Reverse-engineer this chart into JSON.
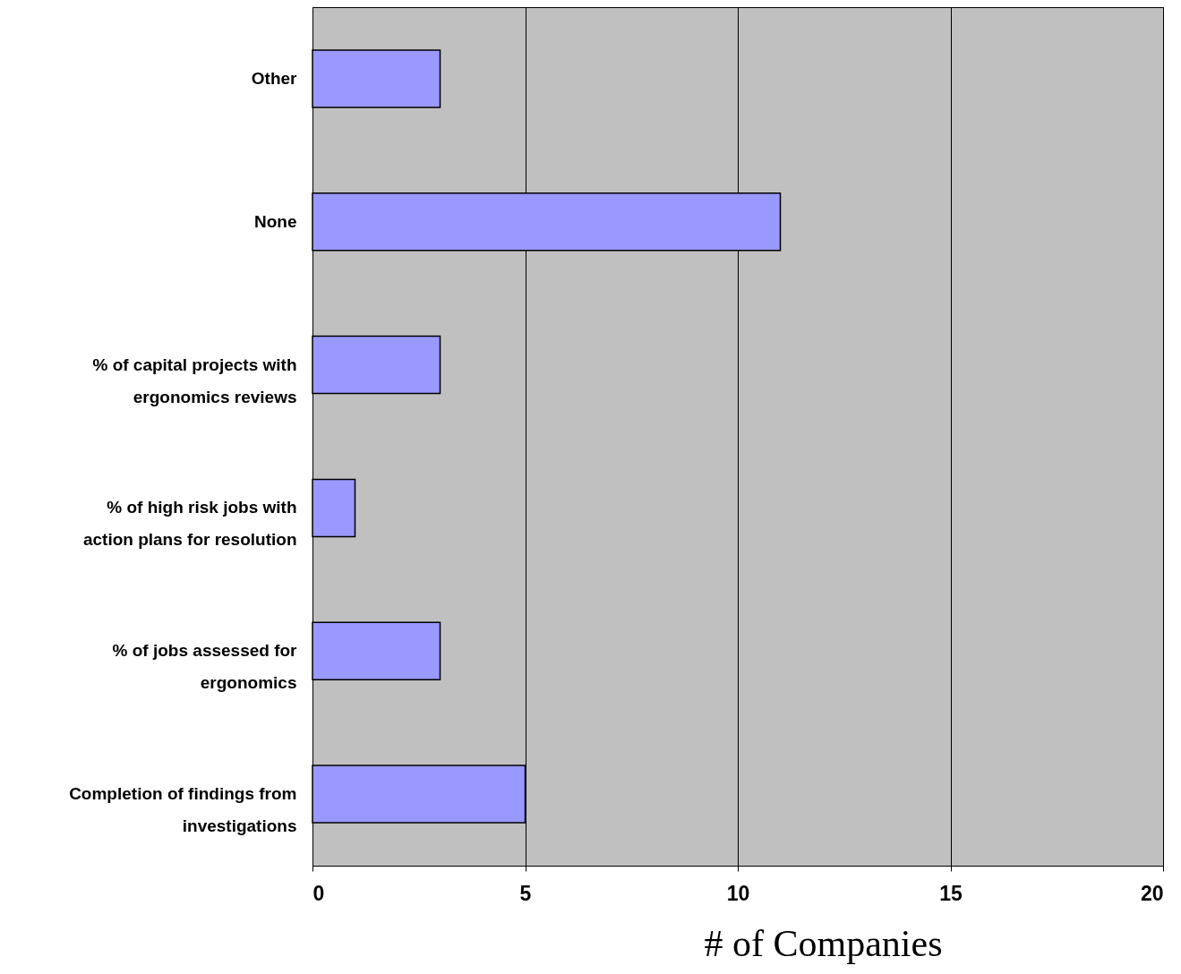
{
  "chart_data": {
    "type": "bar",
    "orientation": "horizontal",
    "xlabel": "# of Companies",
    "categories": [
      "Other",
      "None",
      "% of capital projects with ergonomics reviews",
      "% of high risk jobs with action plans for resolution",
      "% of jobs assessed for ergonomics",
      "Completion of findings from investigations"
    ],
    "values": [
      3,
      11,
      3,
      1,
      3,
      5
    ],
    "color": "#9999ff",
    "xlim": [
      0,
      20
    ],
    "xticks": [
      0,
      5,
      10,
      15,
      20
    ],
    "grid": "x"
  }
}
